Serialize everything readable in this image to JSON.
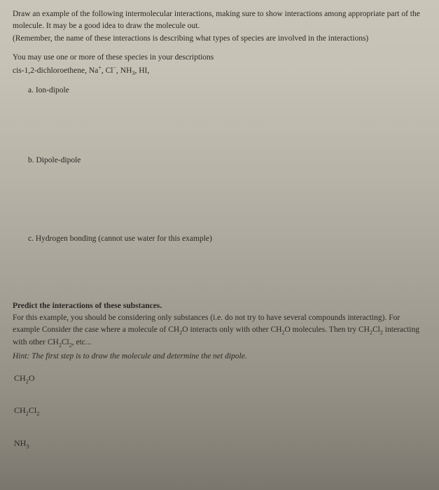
{
  "instructions": {
    "line1": "Draw an example of the following intermolecular interactions, making sure to show interactions among appropriate part of the molecule. It may be a good idea to draw the molecule out.",
    "line2": "(Remember, the name of these interactions is describing what types of species are involved in the interactions)"
  },
  "species": {
    "intro": "You may use one or more of these species in your descriptions",
    "list_prefix": "cis-1,2-dichloroethene, ",
    "na": "Na",
    "na_sup": "+",
    "sep1": ", ",
    "cl": "Cl",
    "cl_sup": "−",
    "sep2": ", ",
    "nh": "NH",
    "nh_sub": "3",
    "sep3": ", ",
    "hi": "HI,"
  },
  "items": {
    "a": "a.    Ion-dipole",
    "b": "b.    Dipole-dipole",
    "c": "c.    Hydrogen bonding (cannot use water for this example)"
  },
  "predict": {
    "title": "Predict the interactions of these substances.",
    "text1_part1": "For this example, you should be considering only substances (i.e. do not try to have several compounds interacting). For example Consider the case where a molecule of ",
    "ch2o_1": "CH",
    "ch2o_1_sub": "2",
    "ch2o_1_o": "O",
    "text1_part2": " interacts only with other ",
    "ch2o_2": "CH",
    "ch2o_2_sub": "2",
    "ch2o_2_o": "O",
    "text1_part3": " molecules. Then try ",
    "ch2cl2_1": "CH",
    "ch2cl2_1_sub1": "2",
    "ch2cl2_1_cl": "Cl",
    "ch2cl2_1_sub2": "2",
    "text1_part4": " interacting with other ",
    "ch2cl2_2": "CH",
    "ch2cl2_2_sub1": "2",
    "ch2cl2_2_cl": "Cl",
    "ch2cl2_2_sub2": "2",
    "text1_part5": ", etc...",
    "hint": "Hint: The first step is to draw the molecule and determine the net dipole."
  },
  "compounds": {
    "c1": "CH",
    "c1_sub": "2",
    "c1_end": "O",
    "c2": "CH",
    "c2_sub1": "2",
    "c2_mid": "Cl",
    "c2_sub2": "2",
    "c3": "NH",
    "c3_sub": "3"
  }
}
